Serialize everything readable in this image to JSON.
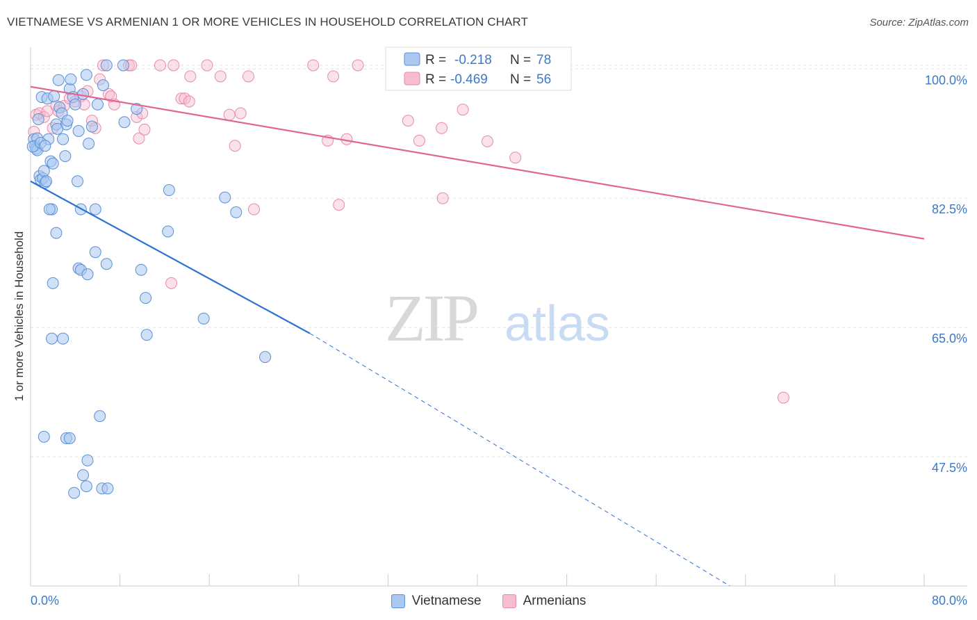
{
  "header": {
    "title": "VIETNAMESE VS ARMENIAN 1 OR MORE VEHICLES IN HOUSEHOLD CORRELATION CHART",
    "source": "Source: ZipAtlas.com"
  },
  "watermark": {
    "zip": "ZIP",
    "atlas": "atlas"
  },
  "legend_top": {
    "rows": [
      {
        "r_label": "R =",
        "r_value": "-0.218",
        "n_label": "N =",
        "n_value": "78"
      },
      {
        "r_label": "R =",
        "r_value": "-0.469",
        "n_label": "N =",
        "n_value": "56"
      }
    ]
  },
  "colors": {
    "vietnamese_fill": "#aac8f0",
    "vietnamese_stroke": "#5b8fd6",
    "vietnamese_line": "#2a72d4",
    "armenian_fill": "#f6bcd0",
    "armenian_stroke": "#e88aaa",
    "armenian_line": "#e0668f",
    "axis_text": "#3d78c8",
    "grid": "#e0e0e0"
  },
  "chart_data": {
    "type": "scatter",
    "title": "VIETNAMESE VS ARMENIAN 1 OR MORE VEHICLES IN HOUSEHOLD CORRELATION CHART",
    "xlabel": "",
    "ylabel": "1 or more Vehicles in Household",
    "xlim": [
      0,
      80
    ],
    "ylim": [
      30,
      102
    ],
    "x_tick_labels": [
      "0.0%",
      "80.0%"
    ],
    "y_ticks": [
      47.5,
      65.0,
      82.5,
      100.0
    ],
    "y_tick_labels": [
      "47.5%",
      "65.0%",
      "82.5%",
      "100.0%"
    ],
    "grid": true,
    "legend_position": "top-center",
    "series": [
      {
        "name": "Vietnamese",
        "r": -0.218,
        "n": 78,
        "trend": {
          "x": [
            0,
            25
          ],
          "y": [
            84.8,
            64.2
          ]
        },
        "trend_dashed": {
          "x": [
            25,
            62.6
          ],
          "y": [
            64.2,
            30.0
          ]
        },
        "points": [
          [
            0.3,
            90.5
          ],
          [
            0.4,
            89.6
          ],
          [
            0.5,
            89.2
          ],
          [
            0.6,
            90.6
          ],
          [
            0.7,
            93.2
          ],
          [
            0.6,
            89.0
          ],
          [
            0.8,
            85.5
          ],
          [
            0.9,
            85.0
          ],
          [
            1.1,
            85.2
          ],
          [
            1.2,
            86.2
          ],
          [
            1.3,
            84.6
          ],
          [
            1.4,
            84.8
          ],
          [
            1.0,
            96.2
          ],
          [
            1.5,
            96.0
          ],
          [
            1.6,
            90.5
          ],
          [
            1.8,
            87.5
          ],
          [
            2.0,
            87.2
          ],
          [
            2.1,
            96.3
          ],
          [
            2.3,
            92.5
          ],
          [
            2.5,
            98.5
          ],
          [
            2.6,
            94.8
          ],
          [
            2.8,
            94.0
          ],
          [
            2.9,
            90.5
          ],
          [
            3.1,
            88.2
          ],
          [
            3.2,
            92.5
          ],
          [
            3.3,
            93.0
          ],
          [
            3.5,
            97.3
          ],
          [
            3.6,
            98.6
          ],
          [
            3.8,
            96.2
          ],
          [
            4.0,
            95.2
          ],
          [
            4.2,
            84.8
          ],
          [
            4.3,
            91.6
          ],
          [
            4.5,
            81.0
          ],
          [
            4.7,
            96.6
          ],
          [
            5.0,
            99.2
          ],
          [
            5.2,
            89.9
          ],
          [
            5.5,
            92.2
          ],
          [
            5.8,
            81.0
          ],
          [
            6.0,
            95.2
          ],
          [
            6.5,
            97.8
          ],
          [
            6.8,
            100.5
          ],
          [
            8.3,
            100.5
          ],
          [
            8.4,
            92.8
          ],
          [
            9.5,
            94.6
          ],
          [
            1.9,
            81.0
          ],
          [
            1.7,
            81.0
          ],
          [
            2.3,
            77.8
          ],
          [
            4.3,
            73.0
          ],
          [
            5.8,
            75.2
          ],
          [
            6.8,
            73.6
          ],
          [
            9.9,
            72.8
          ],
          [
            10.3,
            69.0
          ],
          [
            10.4,
            64.0
          ],
          [
            12.4,
            83.6
          ],
          [
            12.3,
            78.0
          ],
          [
            17.4,
            82.6
          ],
          [
            18.4,
            80.6
          ],
          [
            15.5,
            66.2
          ],
          [
            2.0,
            71.0
          ],
          [
            1.9,
            63.5
          ],
          [
            2.9,
            63.5
          ],
          [
            4.5,
            72.8
          ],
          [
            5.1,
            72.2
          ],
          [
            21.0,
            61.0
          ],
          [
            6.2,
            53.0
          ],
          [
            1.2,
            50.2
          ],
          [
            3.2,
            50.0
          ],
          [
            3.5,
            50.0
          ],
          [
            5.1,
            47.0
          ],
          [
            4.7,
            45.0
          ],
          [
            5.0,
            43.5
          ],
          [
            3.9,
            42.6
          ],
          [
            6.4,
            43.2
          ],
          [
            6.9,
            43.2
          ],
          [
            0.2,
            89.5
          ],
          [
            0.9,
            90.0
          ],
          [
            1.3,
            89.6
          ],
          [
            2.4,
            91.9
          ]
        ]
      },
      {
        "name": "Armenians",
        "r": -0.469,
        "n": 56,
        "trend": {
          "x": [
            0,
            80
          ],
          "y": [
            97.6,
            77.0
          ]
        },
        "points": [
          [
            0.3,
            91.5
          ],
          [
            0.5,
            93.8
          ],
          [
            0.8,
            94.0
          ],
          [
            1.2,
            93.5
          ],
          [
            1.5,
            94.3
          ],
          [
            2.0,
            92.0
          ],
          [
            2.3,
            95.0
          ],
          [
            2.5,
            94.3
          ],
          [
            3.0,
            95.0
          ],
          [
            3.5,
            96.0
          ],
          [
            4.0,
            95.6
          ],
          [
            4.5,
            96.3
          ],
          [
            4.8,
            95.2
          ],
          [
            5.1,
            97.0
          ],
          [
            5.5,
            93.0
          ],
          [
            5.8,
            92.0
          ],
          [
            6.2,
            98.6
          ],
          [
            6.5,
            100.5
          ],
          [
            7.0,
            96.6
          ],
          [
            7.5,
            95.2
          ],
          [
            7.2,
            96.3
          ],
          [
            8.8,
            100.5
          ],
          [
            9.5,
            93.5
          ],
          [
            9.7,
            90.6
          ],
          [
            10.0,
            94.0
          ],
          [
            10.2,
            91.8
          ],
          [
            9.0,
            100.5
          ],
          [
            11.6,
            100.5
          ],
          [
            12.8,
            100.5
          ],
          [
            13.5,
            96.0
          ],
          [
            13.8,
            96.0
          ],
          [
            14.2,
            95.6
          ],
          [
            14.3,
            99.0
          ],
          [
            15.8,
            100.5
          ],
          [
            17.0,
            99.0
          ],
          [
            17.8,
            93.8
          ],
          [
            18.3,
            89.6
          ],
          [
            18.8,
            94.0
          ],
          [
            19.5,
            99.0
          ],
          [
            20.0,
            81.0
          ],
          [
            25.3,
            100.5
          ],
          [
            26.6,
            90.3
          ],
          [
            27.1,
            99.0
          ],
          [
            27.6,
            81.6
          ],
          [
            28.3,
            90.5
          ],
          [
            29.3,
            100.5
          ],
          [
            32.6,
            100.5
          ],
          [
            33.8,
            93.0
          ],
          [
            34.8,
            90.3
          ],
          [
            36.8,
            92.0
          ],
          [
            36.9,
            82.5
          ],
          [
            38.7,
            94.5
          ],
          [
            40.9,
            90.2
          ],
          [
            43.4,
            88.0
          ],
          [
            12.6,
            71.0
          ],
          [
            67.4,
            55.5
          ]
        ]
      }
    ]
  }
}
